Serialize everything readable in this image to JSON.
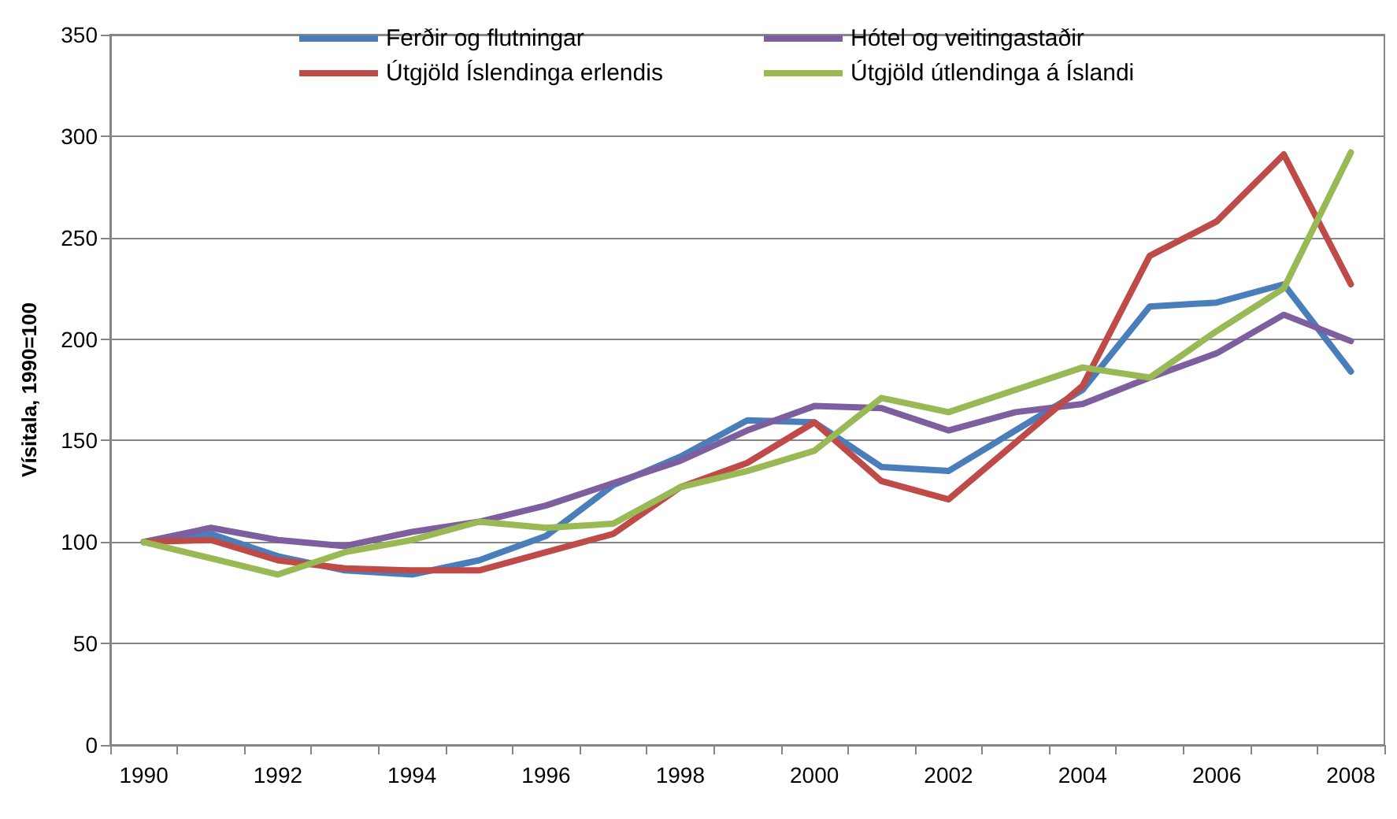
{
  "chart_data": {
    "type": "line",
    "ylabel": "Vísitala, 1990=100",
    "categories": [
      "1990",
      null,
      "1992",
      null,
      "1994",
      null,
      "1996",
      null,
      "1998",
      null,
      "2000",
      null,
      "2002",
      null,
      "2004",
      null,
      "2006",
      null,
      "2008"
    ],
    "series": [
      {
        "name": "Ferðir og flutningar",
        "color": "#4a7ebb",
        "values": [
          100,
          104,
          93,
          86,
          84,
          91,
          103,
          128,
          142,
          160,
          159,
          137,
          135,
          155,
          175,
          216,
          218,
          227,
          184
        ]
      },
      {
        "name": "Hótel og veitingastaðir",
        "color": "#7d5fa0",
        "values": [
          100,
          107,
          101,
          98,
          105,
          110,
          118,
          129,
          140,
          155,
          167,
          166,
          155,
          164,
          168,
          181,
          193,
          212,
          199
        ]
      },
      {
        "name": "Útgjöld Íslendinga erlendis",
        "color": "#be4b48",
        "values": [
          100,
          101,
          91,
          87,
          86,
          86,
          95,
          104,
          127,
          139,
          159,
          130,
          121,
          149,
          177,
          241,
          258,
          291,
          227
        ]
      },
      {
        "name": "Útgjöld útlendinga á Íslandi",
        "color": "#98b954",
        "values": [
          100,
          92,
          84,
          95,
          101,
          110,
          107,
          109,
          127,
          135,
          145,
          171,
          164,
          175,
          186,
          181,
          204,
          225,
          292
        ]
      }
    ],
    "ylim": [
      0,
      350
    ],
    "yticks": [
      0,
      50,
      100,
      150,
      200,
      250,
      300,
      350
    ],
    "grid": "y",
    "legend": "top",
    "marker": "none",
    "line_style": "solid"
  }
}
